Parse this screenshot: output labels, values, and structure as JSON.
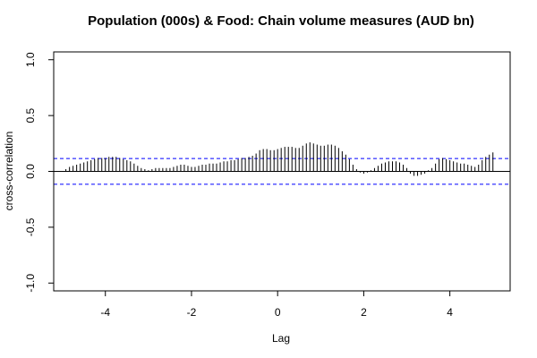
{
  "chart_data": {
    "type": "bar",
    "title": "Population (000s) & Food: Chain volume measures (AUD bn)",
    "xlabel": "Lag",
    "ylabel": "cross-correlation",
    "xlim": [
      -5.2,
      5.4
    ],
    "ylim": [
      -1.07,
      1.07
    ],
    "x_ticks": [
      -4,
      -2,
      0,
      2,
      4
    ],
    "x_tick_labels": [
      "-4",
      "-2",
      "0",
      "2",
      "4"
    ],
    "y_ticks": [
      -1.0,
      -0.5,
      0.0,
      0.5,
      1.0
    ],
    "y_tick_labels": [
      "-1.0",
      "-0.5",
      "0.0",
      "0.5",
      "1.0"
    ],
    "confidence_limit": 0.115,
    "confidence_line_color": "#0000ff",
    "bar_color": "#000000",
    "zero_line_color": "#000000",
    "grid": false,
    "series": [
      {
        "lags": [
          -4.917,
          -4.833,
          -4.75,
          -4.667,
          -4.583,
          -4.5,
          -4.417,
          -4.333,
          -4.25,
          -4.167,
          -4.083,
          -4.0,
          -3.917,
          -3.833,
          -3.75,
          -3.667,
          -3.583,
          -3.5,
          -3.417,
          -3.333,
          -3.25,
          -3.167,
          -3.083,
          -3.0,
          -2.917,
          -2.833,
          -2.75,
          -2.667,
          -2.583,
          -2.5,
          -2.417,
          -2.333,
          -2.25,
          -2.167,
          -2.083,
          -2.0,
          -1.917,
          -1.833,
          -1.75,
          -1.667,
          -1.583,
          -1.5,
          -1.417,
          -1.333,
          -1.25,
          -1.167,
          -1.083,
          -1.0,
          -0.917,
          -0.833,
          -0.75,
          -0.667,
          -0.583,
          -0.5,
          -0.417,
          -0.333,
          -0.25,
          -0.167,
          -0.083,
          0.0,
          0.083,
          0.167,
          0.25,
          0.333,
          0.417,
          0.5,
          0.583,
          0.667,
          0.75,
          0.833,
          0.917,
          1.0,
          1.083,
          1.167,
          1.25,
          1.333,
          1.417,
          1.5,
          1.583,
          1.667,
          1.75,
          1.833,
          1.917,
          2.0,
          2.083,
          2.167,
          2.25,
          2.333,
          2.417,
          2.5,
          2.583,
          2.667,
          2.75,
          2.833,
          2.917,
          3.0,
          3.083,
          3.167,
          3.25,
          3.333,
          3.417,
          3.5,
          3.583,
          3.667,
          3.75,
          3.833,
          3.917,
          4.0,
          4.083,
          4.167,
          4.25,
          4.333,
          4.417,
          4.5,
          4.583,
          4.667,
          4.75,
          4.833,
          4.917,
          5.0
        ],
        "values": [
          0.02,
          0.04,
          0.05,
          0.06,
          0.07,
          0.08,
          0.09,
          0.1,
          0.11,
          0.12,
          0.12,
          0.12,
          0.13,
          0.13,
          0.13,
          0.12,
          0.11,
          0.1,
          0.09,
          0.07,
          0.05,
          0.03,
          0.02,
          0.01,
          0.02,
          0.03,
          0.03,
          0.03,
          0.03,
          0.03,
          0.04,
          0.05,
          0.06,
          0.06,
          0.05,
          0.04,
          0.04,
          0.05,
          0.06,
          0.06,
          0.07,
          0.07,
          0.07,
          0.08,
          0.09,
          0.09,
          0.1,
          0.1,
          0.11,
          0.12,
          0.12,
          0.13,
          0.14,
          0.16,
          0.19,
          0.2,
          0.2,
          0.19,
          0.19,
          0.2,
          0.21,
          0.22,
          0.22,
          0.22,
          0.21,
          0.21,
          0.23,
          0.25,
          0.26,
          0.25,
          0.24,
          0.23,
          0.23,
          0.24,
          0.24,
          0.23,
          0.21,
          0.18,
          0.15,
          0.11,
          0.06,
          0.02,
          -0.01,
          -0.02,
          -0.01,
          0.01,
          0.03,
          0.05,
          0.07,
          0.08,
          0.09,
          0.09,
          0.09,
          0.08,
          0.06,
          0.03,
          -0.02,
          -0.04,
          -0.04,
          -0.03,
          -0.02,
          0.01,
          0.03,
          0.07,
          0.11,
          0.12,
          0.11,
          0.1,
          0.09,
          0.08,
          0.07,
          0.07,
          0.06,
          0.05,
          0.04,
          0.06,
          0.1,
          0.13,
          0.15,
          0.17
        ]
      }
    ]
  }
}
